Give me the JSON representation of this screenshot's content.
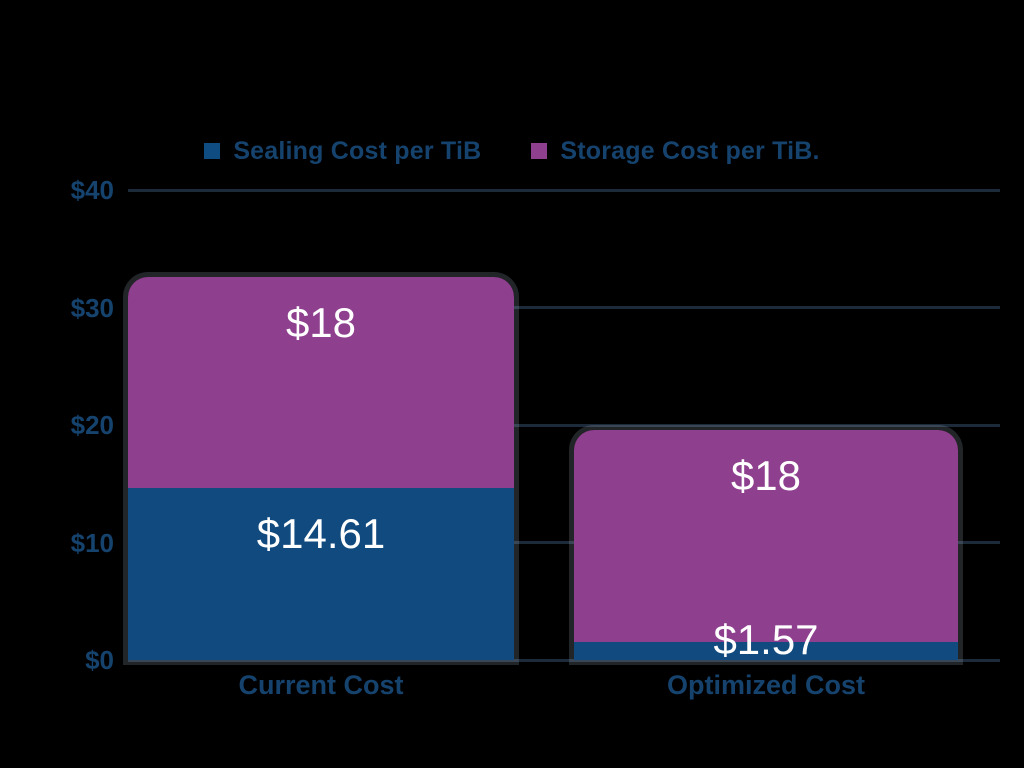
{
  "page": {
    "background_color": "#000000"
  },
  "legend": {
    "items": [
      {
        "id": "sealing",
        "label": "Sealing Cost per TiB",
        "color": "#0f4c81"
      },
      {
        "id": "storage",
        "label": "Storage Cost per TiB.",
        "color": "#8e3f8e"
      }
    ]
  },
  "chart_data": {
    "type": "bar",
    "stacked": true,
    "categories": [
      "Current Cost",
      "Optimized Cost"
    ],
    "series": [
      {
        "name": "Sealing Cost per TiB",
        "color": "#114a7e",
        "values": [
          14.61,
          1.57
        ],
        "data_labels": [
          "$14.61",
          "$1.57"
        ]
      },
      {
        "name": "Storage Cost per TiB.",
        "color": "#8e3f8e",
        "values": [
          18,
          18
        ],
        "data_labels": [
          "$18",
          "$18"
        ]
      }
    ],
    "ylim": [
      0,
      40
    ],
    "yticks": [
      {
        "value": 0,
        "label": "$0"
      },
      {
        "value": 10,
        "label": "$10"
      },
      {
        "value": 20,
        "label": "$20"
      },
      {
        "value": 30,
        "label": "$30"
      },
      {
        "value": 40,
        "label": "$40"
      }
    ],
    "grid": true,
    "legend_position": "top",
    "colors": {
      "background": "#000000",
      "gridline": "#1c2a3a",
      "axis_text": "#15436e",
      "data_label_text": "#ffffff"
    }
  }
}
